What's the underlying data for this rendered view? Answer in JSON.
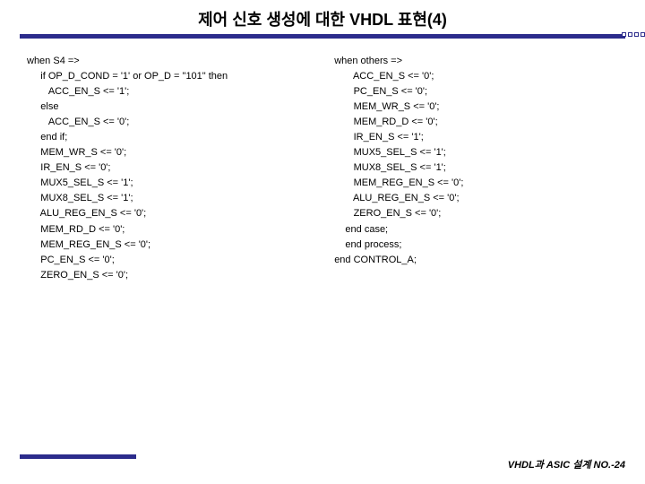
{
  "title": "제어 신호 생성에 대한 VHDL 표현(4)",
  "colors": {
    "bar": "#2c2c8c",
    "text": "#000000",
    "background": "#ffffff"
  },
  "left_code": "when S4 =>\n     if OP_D_COND = '1' or OP_D = \"101\" then\n        ACC_EN_S <= '1';\n     else\n        ACC_EN_S <= '0';\n     end if;\n     MEM_WR_S <= '0';\n     IR_EN_S <= '0';\n     MUX5_SEL_S <= '1';\n     MUX8_SEL_S <= '1';\n     ALU_REG_EN_S <= '0';\n     MEM_RD_D <= '0';\n     MEM_REG_EN_S <= '0';\n     PC_EN_S <= '0';\n     ZERO_EN_S <= '0';",
  "right_code": "when others =>\n       ACC_EN_S <= '0';\n       PC_EN_S <= '0';\n       MEM_WR_S <= '0';\n       MEM_RD_D <= '0';\n       IR_EN_S <= '1';\n       MUX5_SEL_S <= '1';\n       MUX8_SEL_S <= '1';\n       MEM_REG_EN_S <= '0';\n       ALU_REG_EN_S <= '0';\n       ZERO_EN_S <= '0';\n    end case;\n    end process;\nend CONTROL_A;",
  "footer": "VHDL과 ASIC 설계  NO.-24"
}
